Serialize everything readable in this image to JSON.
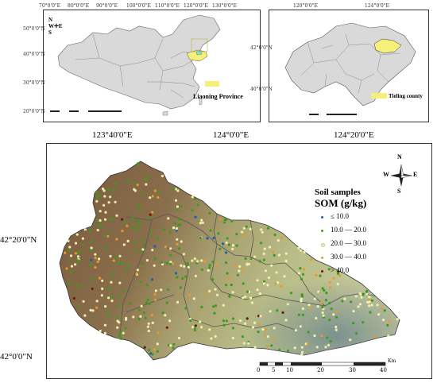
{
  "china_inset": {
    "lon_ticks": [
      "70°0'0\"E",
      "80°0'0\"E",
      "90°0'0\"E",
      "100°0'0\"E",
      "110°0'0\"E",
      "120°0'0\"E",
      "130°0'0\"E"
    ],
    "lat_ticks": [
      "50°0'0\"N",
      "40°0'0\"N",
      "30°0'0\"N",
      "20°0'0\"N"
    ],
    "legend_label": "Liaoning Province",
    "highlight_color": "#f5f07a",
    "study_color": "#78e6e6"
  },
  "liaoning_inset": {
    "lon_ticks": [
      "120°0'0\"E",
      "124°0'0\"E"
    ],
    "lat_ticks": [
      "42°0'0\"N",
      "40°0'0\"N"
    ],
    "legend_label": "Tieling county",
    "highlight_color": "#f5f07a"
  },
  "main_map": {
    "lon_ticks": [
      "123°40'0\"E",
      "124°0'0\"E",
      "124°20'0\"E"
    ],
    "lat_ticks": [
      "42°20'0\"N",
      "42°0'0\"N"
    ],
    "compass": {
      "n": "N",
      "s": "S",
      "e": "E",
      "w": "W"
    },
    "legend": {
      "title_line1": "Soil samples",
      "title_line2": "SOM (g/kg)",
      "classes": [
        {
          "label": "≤ 10.0",
          "color": "#1f5fa8"
        },
        {
          "label": "10.0 — 20.0",
          "color": "#3a9b1e"
        },
        {
          "label": "20.0 — 30.0",
          "color": "#f3efb0"
        },
        {
          "label": "30.0 — 40.0",
          "color": "#e89a2a"
        },
        {
          "label": "> 40.0",
          "color": "#6b1a10"
        }
      ]
    },
    "scale_bar": {
      "labels": [
        "0",
        "5",
        "10",
        "20",
        "30",
        "40"
      ],
      "unit": "Km"
    }
  }
}
